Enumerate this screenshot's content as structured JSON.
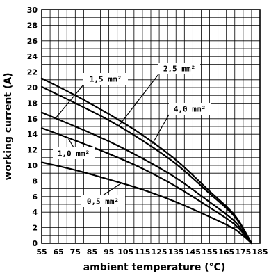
{
  "chart_data": {
    "type": "line",
    "title": "",
    "xlabel": "ambient temperature (°C)",
    "ylabel": "working current (A)",
    "xlim": [
      55,
      185
    ],
    "ylim": [
      0,
      30
    ],
    "x_ticks": [
      55,
      65,
      75,
      85,
      95,
      105,
      115,
      125,
      135,
      145,
      155,
      165,
      175,
      185
    ],
    "y_ticks": [
      0,
      2,
      4,
      6,
      8,
      10,
      12,
      14,
      16,
      18,
      20,
      22,
      24,
      26,
      28,
      30
    ],
    "grid": true,
    "series": [
      {
        "name": "4,0 mm²",
        "x": [
          55,
          75,
          95,
          115,
          135,
          155,
          170,
          180
        ],
        "y": [
          21.2,
          19.0,
          16.6,
          13.9,
          10.7,
          6.7,
          3.6,
          0
        ]
      },
      {
        "name": "2,5 mm²",
        "x": [
          55,
          75,
          95,
          115,
          135,
          155,
          170,
          180
        ],
        "y": [
          20.1,
          18.0,
          15.8,
          13.2,
          10.2,
          6.4,
          3.4,
          0
        ]
      },
      {
        "name": "1,5 mm²",
        "x": [
          55,
          75,
          95,
          115,
          135,
          155,
          170,
          180
        ],
        "y": [
          16.8,
          15.0,
          13.1,
          10.9,
          8.4,
          5.3,
          2.8,
          0
        ]
      },
      {
        "name": "1,0 mm²",
        "x": [
          55,
          75,
          95,
          115,
          135,
          155,
          170,
          180
        ],
        "y": [
          14.8,
          13.2,
          11.5,
          9.6,
          7.3,
          4.6,
          2.4,
          0
        ]
      },
      {
        "name": "0,5 mm²",
        "x": [
          55,
          75,
          95,
          115,
          135,
          155,
          170,
          180
        ],
        "y": [
          10.4,
          9.4,
          8.2,
          6.9,
          5.3,
          3.4,
          1.8,
          0
        ]
      }
    ],
    "annotations": [
      {
        "label": "1,5 mm²",
        "series": "1,5 mm²"
      },
      {
        "label": "2,5 mm²",
        "series": "2,5 mm²"
      },
      {
        "label": "4,0 mm²",
        "series": "4,0 mm²"
      },
      {
        "label": "1,0 mm²",
        "series": "1,0 mm²"
      },
      {
        "label": "0,5 mm²",
        "series": "0,5 mm²"
      }
    ]
  }
}
